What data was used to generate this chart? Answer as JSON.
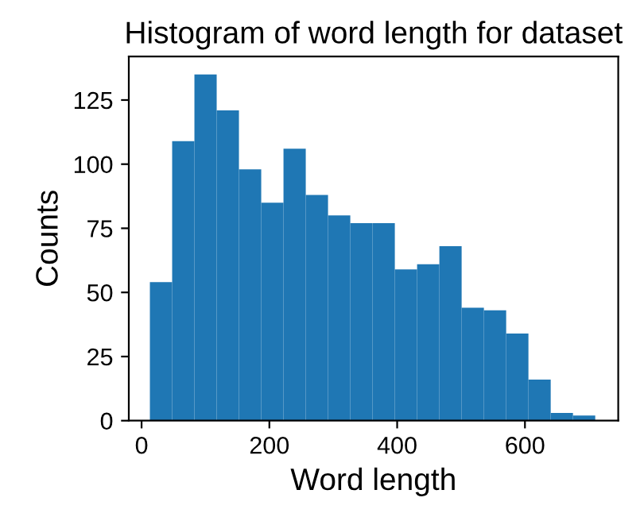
{
  "chart_data": {
    "type": "histogram",
    "title": "Histogram of word length for dataset",
    "xlabel": "Word length",
    "ylabel": "Counts",
    "color": "#1f77b4",
    "bins": [
      13,
      47.85,
      82.7,
      117.55,
      152.4,
      187.25,
      222.1,
      256.95,
      291.8,
      326.65,
      361.5,
      396.35,
      431.2,
      466.05,
      500.9,
      535.75,
      570.6,
      605.45,
      640.3,
      675.15,
      710
    ],
    "values": [
      54,
      109,
      135,
      121,
      98,
      85,
      106,
      88,
      80,
      77,
      77,
      59,
      61,
      68,
      44,
      43,
      34,
      16,
      3,
      2
    ],
    "xlim": [
      -20,
      746
    ],
    "ylim": [
      0,
      142
    ],
    "xticks": [
      0,
      200,
      400,
      600
    ],
    "yticks": [
      0,
      25,
      50,
      75,
      100,
      125
    ],
    "grid": false
  }
}
